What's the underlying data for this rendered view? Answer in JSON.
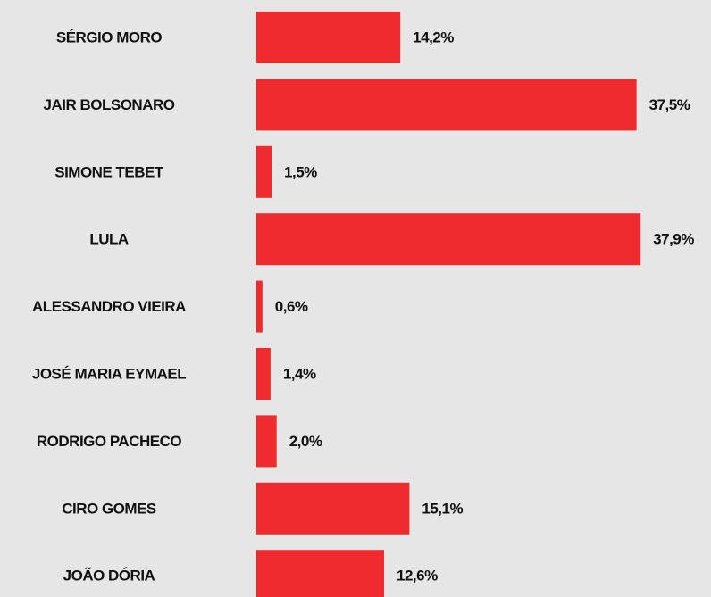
{
  "chart_data": {
    "type": "bar",
    "orientation": "horizontal",
    "categories": [
      "SÉRGIO MORO",
      "JAIR BOLSONARO",
      "SIMONE TEBET",
      "LULA",
      "ALESSANDRO VIEIRA",
      "JOSÉ MARIA EYMAEL",
      "RODRIGO PACHECO",
      "CIRO GOMES",
      "JOÃO DÓRIA"
    ],
    "values": [
      14.2,
      37.5,
      1.5,
      37.9,
      0.6,
      1.4,
      2.0,
      15.1,
      12.6
    ],
    "value_labels": [
      "14,2%",
      "37,5%",
      "1,5%",
      "37,9%",
      "0,6%",
      "1,4%",
      "2,0%",
      "15,1%",
      "12,6%"
    ],
    "color": "#ef2b2d"
  }
}
